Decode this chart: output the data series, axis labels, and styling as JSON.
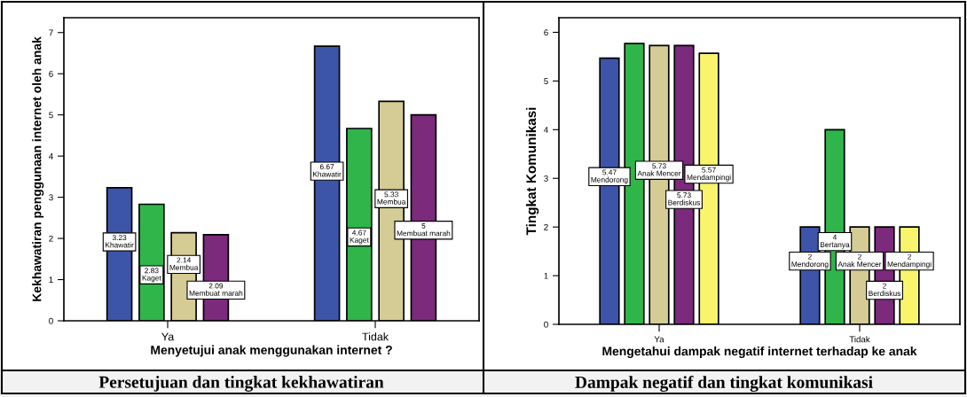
{
  "chart_data": [
    {
      "type": "bar",
      "title": "Persetujuan dan tingkat kekhawatiran",
      "xlabel": "Menyetujui anak menggunakan internet ?",
      "ylabel": "Kekhawatiran penggunaan internet oleh anak",
      "categories": [
        "Ya",
        "Tidak"
      ],
      "series": [
        {
          "name": "Khawatir",
          "color": "#3d55a8",
          "values": [
            3.23,
            6.67
          ],
          "value_labels": [
            "3.23",
            "6.67"
          ]
        },
        {
          "name": "Kaget",
          "color": "#2fb54a",
          "values": [
            2.83,
            4.67
          ],
          "value_labels": [
            "2.83",
            "4.67"
          ]
        },
        {
          "name": "Membua",
          "color": "#d4cc94",
          "values": [
            2.14,
            5.33
          ],
          "value_labels": [
            "2.14",
            "5.33"
          ]
        },
        {
          "name": "Membuat marah",
          "color": "#7b2a7c",
          "values": [
            2.09,
            5
          ],
          "value_labels": [
            "2.09",
            "5"
          ]
        }
      ],
      "ylim": [
        0,
        7.36
      ],
      "yticks": [
        0,
        1,
        2,
        3,
        4,
        5,
        6,
        7
      ],
      "grid": false,
      "legend": false
    },
    {
      "type": "bar",
      "title": "Dampak negatif dan tingkat komunikasi",
      "xlabel": "Mengetahui dampak negatif internet terhadap ke anak",
      "ylabel": "Tingkat Komunikasi",
      "categories": [
        "Ya",
        "Tidak"
      ],
      "series": [
        {
          "name": "Mendorong",
          "color": "#3d55a8",
          "values": [
            5.47,
            2
          ],
          "value_labels": [
            "5.47",
            "2"
          ]
        },
        {
          "name": "Bertanya",
          "color": "#2fb54a",
          "values": [
            5.77,
            4
          ],
          "value_labels": [
            null,
            "4"
          ]
        },
        {
          "name": "Anak Mencer",
          "color": "#d4cc94",
          "values": [
            5.73,
            2
          ],
          "value_labels": [
            "5.73",
            "2"
          ]
        },
        {
          "name": "Berdiskus",
          "color": "#7b2a7c",
          "values": [
            5.73,
            2
          ],
          "value_labels": [
            "5.73",
            "2"
          ]
        },
        {
          "name": "Mendampingi",
          "color": "#f8f46c",
          "values": [
            5.57,
            2
          ],
          "value_labels": [
            "5.57",
            "2"
          ]
        }
      ],
      "ylim": [
        0,
        6.3
      ],
      "yticks": [
        0,
        1,
        2,
        3,
        4,
        5,
        6
      ],
      "grid": false,
      "legend": false
    }
  ]
}
